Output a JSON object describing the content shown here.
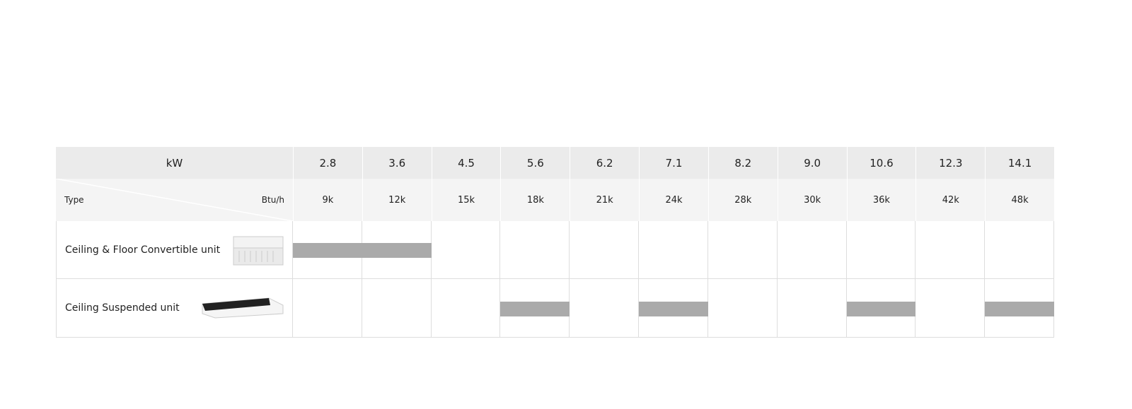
{
  "table": {
    "kw_label": "kW",
    "kw": [
      "2.8",
      "3.6",
      "4.5",
      "5.6",
      "6.2",
      "7.1",
      "8.2",
      "9.0",
      "10.6",
      "12.3",
      "14.1"
    ],
    "type_label": "Type",
    "btu_label": "Btu/h",
    "btu": [
      "9k",
      "12k",
      "15k",
      "18k",
      "21k",
      "24k",
      "28k",
      "30k",
      "36k",
      "42k",
      "48k"
    ],
    "bar_color": "#aaaaaa",
    "rows": [
      {
        "name": "Ceiling & Floor Convertible unit",
        "available": [
          true,
          true,
          false,
          false,
          false,
          false,
          false,
          false,
          false,
          false,
          false
        ]
      },
      {
        "name": "Ceiling Suspended unit",
        "available": [
          false,
          false,
          false,
          true,
          false,
          true,
          false,
          false,
          true,
          false,
          true
        ]
      }
    ]
  }
}
